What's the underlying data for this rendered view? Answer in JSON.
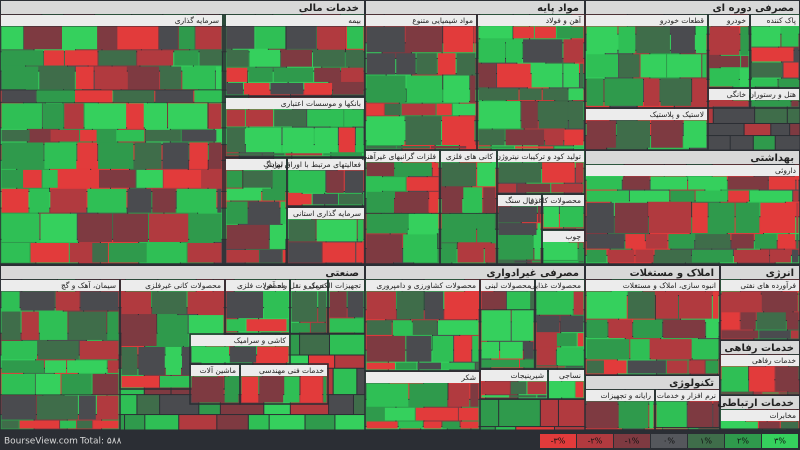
{
  "sectors": [
    {
      "title": "خدمات مالی",
      "groups": [
        "سرمایه گذاری",
        "بیمه",
        "بانکها و موسسات اعتباری",
        "لیزینگ",
        "فعالیتهای مرتبط با اوراق بهادار",
        "سرمایه گذاری استانی"
      ]
    },
    {
      "title": "مواد پایه",
      "groups": [
        "مواد شیمیایی متنوع",
        "آهن و فولاد",
        "فلزات گرانبهای غیرآهنی",
        "کانی های فلزی",
        "تولید کود و ترکیبات نیتروژن",
        "زغال سنگ",
        "محصولات کاغذی",
        "چوب"
      ]
    },
    {
      "title": "مصرفی دوره ای",
      "groups": [
        "قطعات خودرو",
        "خودرو",
        "پاک کننده",
        "خانگی",
        "هتل و رستوران",
        "لاستیک و پلاستیک"
      ]
    },
    {
      "title": "بهداشتی",
      "groups": [
        "داروئی"
      ]
    },
    {
      "title": "صنعتی",
      "groups": [
        "سیمان، آهک و گچ",
        "محصولات کانی غیرفلزی",
        "محصولات فلزی",
        "حمل و نقل راه آهن",
        "تجهیزات الکتریکی",
        "کاشی و سرامیک",
        "ماشین آلات",
        "خدمات فنی مهندسی"
      ]
    },
    {
      "title": "مصرفی غیرادواری",
      "groups": [
        "محصولات کشاورزی و دامپروری",
        "محصولات لبنی",
        "محصولات غذایی",
        "شیرینیجات",
        "نساجی",
        "شکر"
      ]
    },
    {
      "title": "املاک و مستغلات",
      "groups": [
        "انبوه سازی، املاک و مستغلات"
      ]
    },
    {
      "title": "انرژی",
      "groups": [
        "فرآورده های نفتی"
      ]
    },
    {
      "title": "تکنولوژی",
      "groups": [
        "نرم افزار و خدمات",
        "رایانه و تجهیزات"
      ]
    },
    {
      "title": "خدمات رفاهی",
      "groups": [
        "خدمات رفاهی"
      ]
    },
    {
      "title": "خدمات ارتباطی",
      "groups": [
        "مخابرات"
      ]
    }
  ],
  "footer": {
    "site": "BourseView.com",
    "total": "Total: ۵۸۸"
  },
  "legend": [
    "-۳%",
    "-۲%",
    "-۱%",
    "۰%",
    "۱%",
    "۲%",
    "۳%"
  ]
}
